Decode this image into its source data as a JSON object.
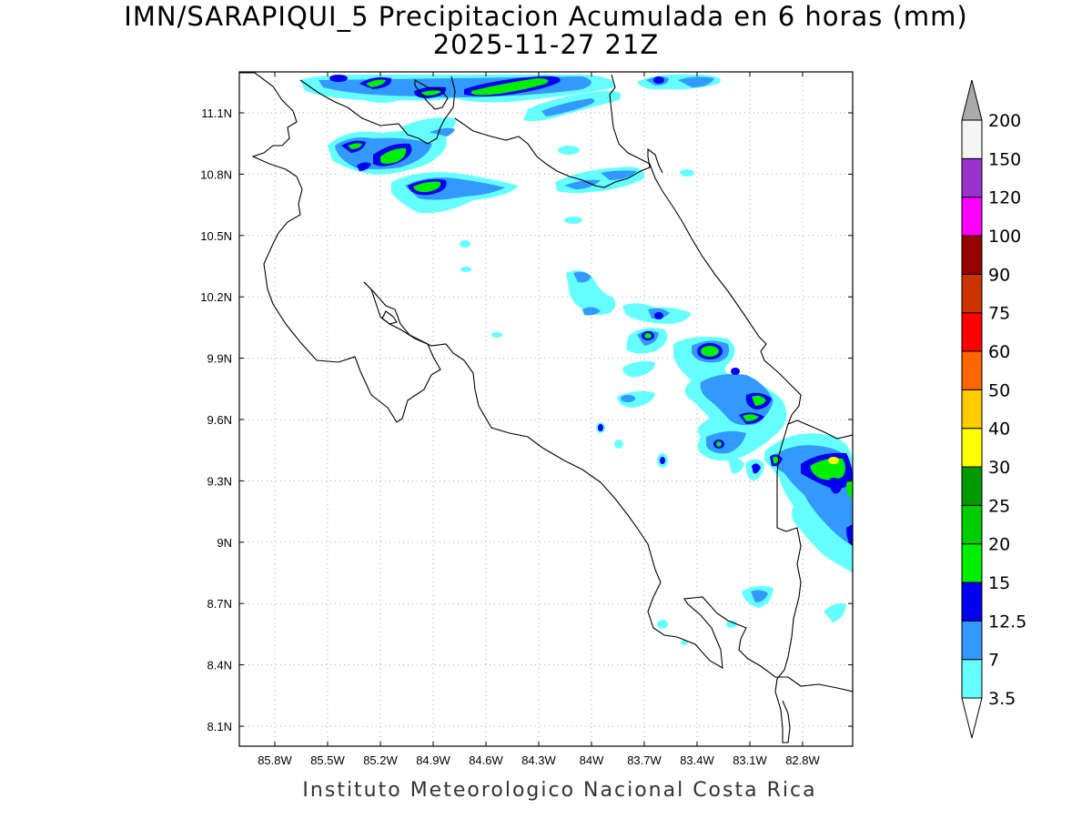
{
  "title": {
    "line1": "IMN/SARAPIQUI_5 Precipitacion Acumulada en 6 horas (mm)",
    "line2": "2025-11-27 21Z"
  },
  "footer": "Instituto Meteorologico Nacional Costa Rica",
  "axes": {
    "lon_ticks": [
      "85.8W",
      "85.5W",
      "85.2W",
      "84.9W",
      "84.6W",
      "84.3W",
      "84W",
      "83.7W",
      "83.4W",
      "83.1W",
      "82.8W"
    ],
    "lat_ticks": [
      "11.1N",
      "10.8N",
      "10.5N",
      "10.2N",
      "9.9N",
      "9.6N",
      "9.3N",
      "9N",
      "8.7N",
      "8.4N",
      "8.1N"
    ],
    "gridlines": true
  },
  "colorbar": {
    "levels": [
      "3.5",
      "7",
      "12.5",
      "15",
      "20",
      "25",
      "30",
      "40",
      "50",
      "60",
      "75",
      "90",
      "100",
      "120",
      "150",
      "200"
    ],
    "colors": [
      "#66ffff",
      "#3399ff",
      "#0000ee",
      "#00ee00",
      "#00cc00",
      "#009900",
      "#ffff00",
      "#ffcc00",
      "#ff6600",
      "#ff0000",
      "#cc3300",
      "#990000",
      "#ff00ff",
      "#9933cc",
      "#f5f5f5"
    ],
    "over_color": "#aaaaaa",
    "under_color": "#ffffff"
  },
  "colors": {
    "light_cyan": "#66ffff",
    "medium_blue": "#3399ff",
    "dark_blue": "#0000ee",
    "green": "#00ee00"
  }
}
